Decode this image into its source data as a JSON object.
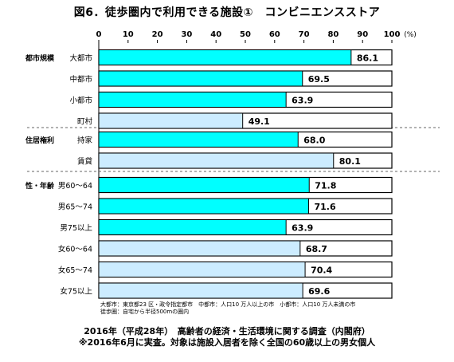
{
  "chart_data": {
    "type": "bar",
    "orientation": "horizontal",
    "title": "図6．徒歩圏内で利用できる施設①　コンビニエンスストア",
    "unit_label": "(%)",
    "xlim": [
      0,
      100
    ],
    "xticks": [
      "0",
      "10",
      "20",
      "30",
      "40",
      "50",
      "60",
      "70",
      "80",
      "90",
      "100"
    ],
    "grid": false,
    "highlight_color": "#00FFFF",
    "light_color": "#CCECFF",
    "groups": [
      {
        "label": "都市規模",
        "bars": [
          {
            "category": "大都市",
            "value": 86.1,
            "display": "86.1",
            "style": "highlight"
          },
          {
            "category": "中都市",
            "value": 69.5,
            "display": "69.5",
            "style": "highlight"
          },
          {
            "category": "小都市",
            "value": 63.9,
            "display": "63.9",
            "style": "highlight"
          },
          {
            "category": "町村",
            "value": 49.1,
            "display": "49.1",
            "style": "light"
          }
        ]
      },
      {
        "label": "住居権利",
        "bars": [
          {
            "category": "持家",
            "value": 68.0,
            "display": "68.0",
            "style": "highlight"
          },
          {
            "category": "賃貸",
            "value": 80.1,
            "display": "80.1",
            "style": "light"
          }
        ]
      },
      {
        "label": "性・年齢",
        "bars": [
          {
            "category": "男60～64",
            "value": 71.8,
            "display": "71.8",
            "style": "highlight"
          },
          {
            "category": "男65～74",
            "value": 71.6,
            "display": "71.6",
            "style": "highlight"
          },
          {
            "category": "男75以上",
            "value": 63.9,
            "display": "63.9",
            "style": "highlight"
          },
          {
            "category": "女60～64",
            "value": 68.7,
            "display": "68.7",
            "style": "light"
          },
          {
            "category": "女65～74",
            "value": 70.4,
            "display": "70.4",
            "style": "light"
          },
          {
            "category": "女75以上",
            "value": 69.6,
            "display": "69.6",
            "style": "light"
          }
        ]
      }
    ]
  },
  "notes": [
    "大都市：東京都23 区・政令指定都市　中都市：人口10 万人以上の市　小都市：人口10 万人未満の市",
    "徒歩圏：自宅から半径500mの圏内"
  ],
  "source": {
    "line1": "2016年（平成28年）　高齢者の経済・生活環境に関する調査（内閣府）",
    "line2": "※2016年6月に実査。対象は施設入居者を除く全国の60歳以上の男女個人"
  }
}
